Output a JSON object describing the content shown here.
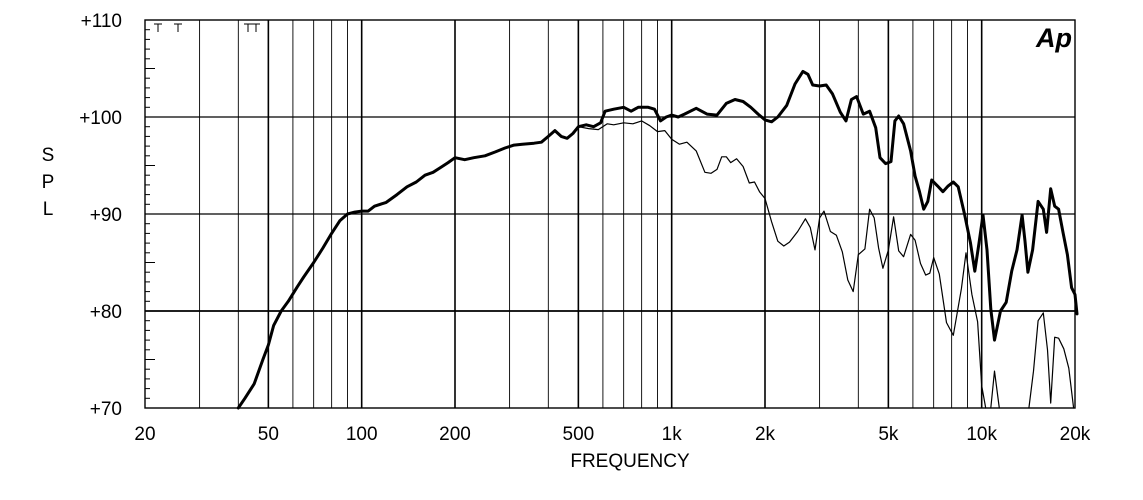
{
  "chart_data": {
    "type": "line",
    "title": "",
    "xlabel": "FREQUENCY",
    "ylabel": "SPL",
    "xscale": "log",
    "xlim": [
      20,
      20000
    ],
    "ylim": [
      70,
      110
    ],
    "x_ticks": [
      {
        "value": 20,
        "label": "20"
      },
      {
        "value": 50,
        "label": "50"
      },
      {
        "value": 100,
        "label": "100"
      },
      {
        "value": 200,
        "label": "200"
      },
      {
        "value": 500,
        "label": "500"
      },
      {
        "value": 1000,
        "label": "1k"
      },
      {
        "value": 2000,
        "label": "2k"
      },
      {
        "value": 5000,
        "label": "5k"
      },
      {
        "value": 10000,
        "label": "10k"
      },
      {
        "value": 20000,
        "label": "20k"
      }
    ],
    "y_ticks": [
      {
        "value": 70,
        "label": "+70"
      },
      {
        "value": 80,
        "label": "+80"
      },
      {
        "value": 90,
        "label": "+90"
      },
      {
        "value": 100,
        "label": "+100"
      },
      {
        "value": 110,
        "label": "+110"
      }
    ],
    "grid": true,
    "logo": "Ap",
    "series": [
      {
        "style": "thick",
        "points": [
          [
            40,
            70
          ],
          [
            42,
            71
          ],
          [
            45,
            72.5
          ],
          [
            48,
            75
          ],
          [
            50,
            76.5
          ],
          [
            52,
            78.5
          ],
          [
            55,
            80
          ],
          [
            58,
            81
          ],
          [
            62,
            82.5
          ],
          [
            65,
            83.5
          ],
          [
            70,
            85
          ],
          [
            75,
            86.5
          ],
          [
            80,
            88
          ],
          [
            85,
            89.3
          ],
          [
            90,
            90
          ],
          [
            95,
            90.2
          ],
          [
            100,
            90.3
          ],
          [
            105,
            90.3
          ],
          [
            110,
            90.8
          ],
          [
            120,
            91.2
          ],
          [
            130,
            92
          ],
          [
            140,
            92.8
          ],
          [
            150,
            93.3
          ],
          [
            160,
            94
          ],
          [
            170,
            94.3
          ],
          [
            180,
            94.8
          ],
          [
            190,
            95.3
          ],
          [
            200,
            95.8
          ],
          [
            215,
            95.6
          ],
          [
            230,
            95.8
          ],
          [
            250,
            96
          ],
          [
            270,
            96.4
          ],
          [
            290,
            96.8
          ],
          [
            310,
            97.1
          ],
          [
            330,
            97.2
          ],
          [
            360,
            97.3
          ],
          [
            380,
            97.4
          ],
          [
            400,
            98
          ],
          [
            420,
            98.6
          ],
          [
            440,
            98
          ],
          [
            460,
            97.8
          ],
          [
            480,
            98.3
          ],
          [
            500,
            99
          ],
          [
            530,
            99.2
          ],
          [
            560,
            99
          ],
          [
            590,
            99.4
          ],
          [
            610,
            100.6
          ],
          [
            650,
            100.8
          ],
          [
            700,
            101
          ],
          [
            740,
            100.6
          ],
          [
            780,
            101
          ],
          [
            840,
            101
          ],
          [
            880,
            100.8
          ],
          [
            920,
            99.6
          ],
          [
            960,
            100
          ],
          [
            1000,
            100.2
          ],
          [
            1050,
            100
          ],
          [
            1100,
            100.3
          ],
          [
            1200,
            100.9
          ],
          [
            1300,
            100.3
          ],
          [
            1400,
            100.2
          ],
          [
            1500,
            101.4
          ],
          [
            1600,
            101.8
          ],
          [
            1700,
            101.6
          ],
          [
            1800,
            101
          ],
          [
            1900,
            100.3
          ],
          [
            2000,
            99.7
          ],
          [
            2100,
            99.5
          ],
          [
            2200,
            100
          ],
          [
            2350,
            101.2
          ],
          [
            2500,
            103.4
          ],
          [
            2650,
            104.7
          ],
          [
            2750,
            104.4
          ],
          [
            2850,
            103.3
          ],
          [
            3000,
            103.2
          ],
          [
            3150,
            103.3
          ],
          [
            3300,
            102.4
          ],
          [
            3500,
            100.5
          ],
          [
            3650,
            99.6
          ],
          [
            3800,
            101.8
          ],
          [
            3950,
            102.1
          ],
          [
            4150,
            100.3
          ],
          [
            4350,
            100.6
          ],
          [
            4550,
            98.9
          ],
          [
            4700,
            95.8
          ],
          [
            4900,
            95.2
          ],
          [
            5100,
            95.4
          ],
          [
            5250,
            99.6
          ],
          [
            5400,
            100.1
          ],
          [
            5600,
            99.3
          ],
          [
            5900,
            96.5
          ],
          [
            6100,
            93.9
          ],
          [
            6300,
            92.3
          ],
          [
            6500,
            90.5
          ],
          [
            6700,
            91.3
          ],
          [
            6900,
            93.5
          ],
          [
            7200,
            92.9
          ],
          [
            7500,
            92.3
          ],
          [
            7800,
            92.9
          ],
          [
            8100,
            93.3
          ],
          [
            8400,
            92.8
          ],
          [
            8800,
            90
          ],
          [
            9200,
            87
          ],
          [
            9500,
            84.1
          ],
          [
            9800,
            87
          ],
          [
            10100,
            89.9
          ],
          [
            10400,
            86.3
          ],
          [
            10700,
            80.2
          ],
          [
            11000,
            77
          ],
          [
            11500,
            80
          ],
          [
            12000,
            80.9
          ],
          [
            12500,
            84.1
          ],
          [
            13000,
            86.3
          ],
          [
            13500,
            89.9
          ],
          [
            13800,
            87.2
          ],
          [
            14100,
            84
          ],
          [
            14600,
            86.3
          ],
          [
            15200,
            91.3
          ],
          [
            15800,
            90.5
          ],
          [
            16200,
            88.1
          ],
          [
            16700,
            92.6
          ],
          [
            17200,
            90.8
          ],
          [
            17700,
            90.5
          ],
          [
            18300,
            88.1
          ],
          [
            18900,
            85.8
          ],
          [
            19500,
            82.4
          ],
          [
            20000,
            81.7
          ],
          [
            20300,
            79.7
          ]
        ]
      },
      {
        "style": "thin",
        "points": [
          [
            500,
            99
          ],
          [
            540,
            98.8
          ],
          [
            580,
            98.7
          ],
          [
            620,
            99.3
          ],
          [
            650,
            99.2
          ],
          [
            700,
            99.4
          ],
          [
            750,
            99.3
          ],
          [
            800,
            99.6
          ],
          [
            850,
            99.1
          ],
          [
            900,
            98.5
          ],
          [
            950,
            98.6
          ],
          [
            1000,
            97.7
          ],
          [
            1060,
            97.2
          ],
          [
            1120,
            97.4
          ],
          [
            1200,
            96.5
          ],
          [
            1280,
            94.3
          ],
          [
            1340,
            94.2
          ],
          [
            1400,
            94.6
          ],
          [
            1450,
            95.9
          ],
          [
            1500,
            95.9
          ],
          [
            1550,
            95.3
          ],
          [
            1620,
            95.7
          ],
          [
            1700,
            94.9
          ],
          [
            1780,
            93.2
          ],
          [
            1850,
            93.3
          ],
          [
            1920,
            92.3
          ],
          [
            2000,
            91.6
          ],
          [
            2100,
            89.2
          ],
          [
            2200,
            87.2
          ],
          [
            2300,
            86.7
          ],
          [
            2400,
            87.1
          ],
          [
            2550,
            88.2
          ],
          [
            2700,
            89.5
          ],
          [
            2800,
            88.6
          ],
          [
            2900,
            86.3
          ],
          [
            3000,
            89.6
          ],
          [
            3100,
            90.3
          ],
          [
            3250,
            88.2
          ],
          [
            3400,
            87.8
          ],
          [
            3550,
            86.1
          ],
          [
            3700,
            83.2
          ],
          [
            3850,
            82
          ],
          [
            4000,
            85.8
          ],
          [
            4200,
            86.4
          ],
          [
            4350,
            90.5
          ],
          [
            4500,
            89.6
          ],
          [
            4650,
            86.5
          ],
          [
            4800,
            84.4
          ],
          [
            5000,
            86.3
          ],
          [
            5200,
            89.7
          ],
          [
            5400,
            86.2
          ],
          [
            5600,
            85.6
          ],
          [
            5900,
            87.9
          ],
          [
            6100,
            87.3
          ],
          [
            6350,
            84.9
          ],
          [
            6600,
            83.7
          ],
          [
            6800,
            83.9
          ],
          [
            7000,
            85.5
          ],
          [
            7300,
            83.8
          ],
          [
            7700,
            78.8
          ],
          [
            8100,
            77.5
          ],
          [
            8600,
            82.3
          ],
          [
            8900,
            86
          ],
          [
            9300,
            81.7
          ],
          [
            9700,
            78.9
          ],
          [
            10000,
            72.3
          ],
          [
            10300,
            70
          ]
        ]
      },
      {
        "style": "thin",
        "points": [
          [
            10700,
            70
          ],
          [
            11000,
            73.8
          ],
          [
            11400,
            70
          ]
        ]
      },
      {
        "style": "thin",
        "points": [
          [
            14200,
            70
          ],
          [
            14700,
            73.8
          ],
          [
            15200,
            79
          ],
          [
            15800,
            79.8
          ],
          [
            16300,
            76
          ],
          [
            16700,
            70.5
          ],
          [
            17200,
            77.3
          ],
          [
            17700,
            77.2
          ],
          [
            18400,
            76.1
          ],
          [
            19100,
            74.1
          ],
          [
            19800,
            70
          ]
        ]
      }
    ]
  }
}
